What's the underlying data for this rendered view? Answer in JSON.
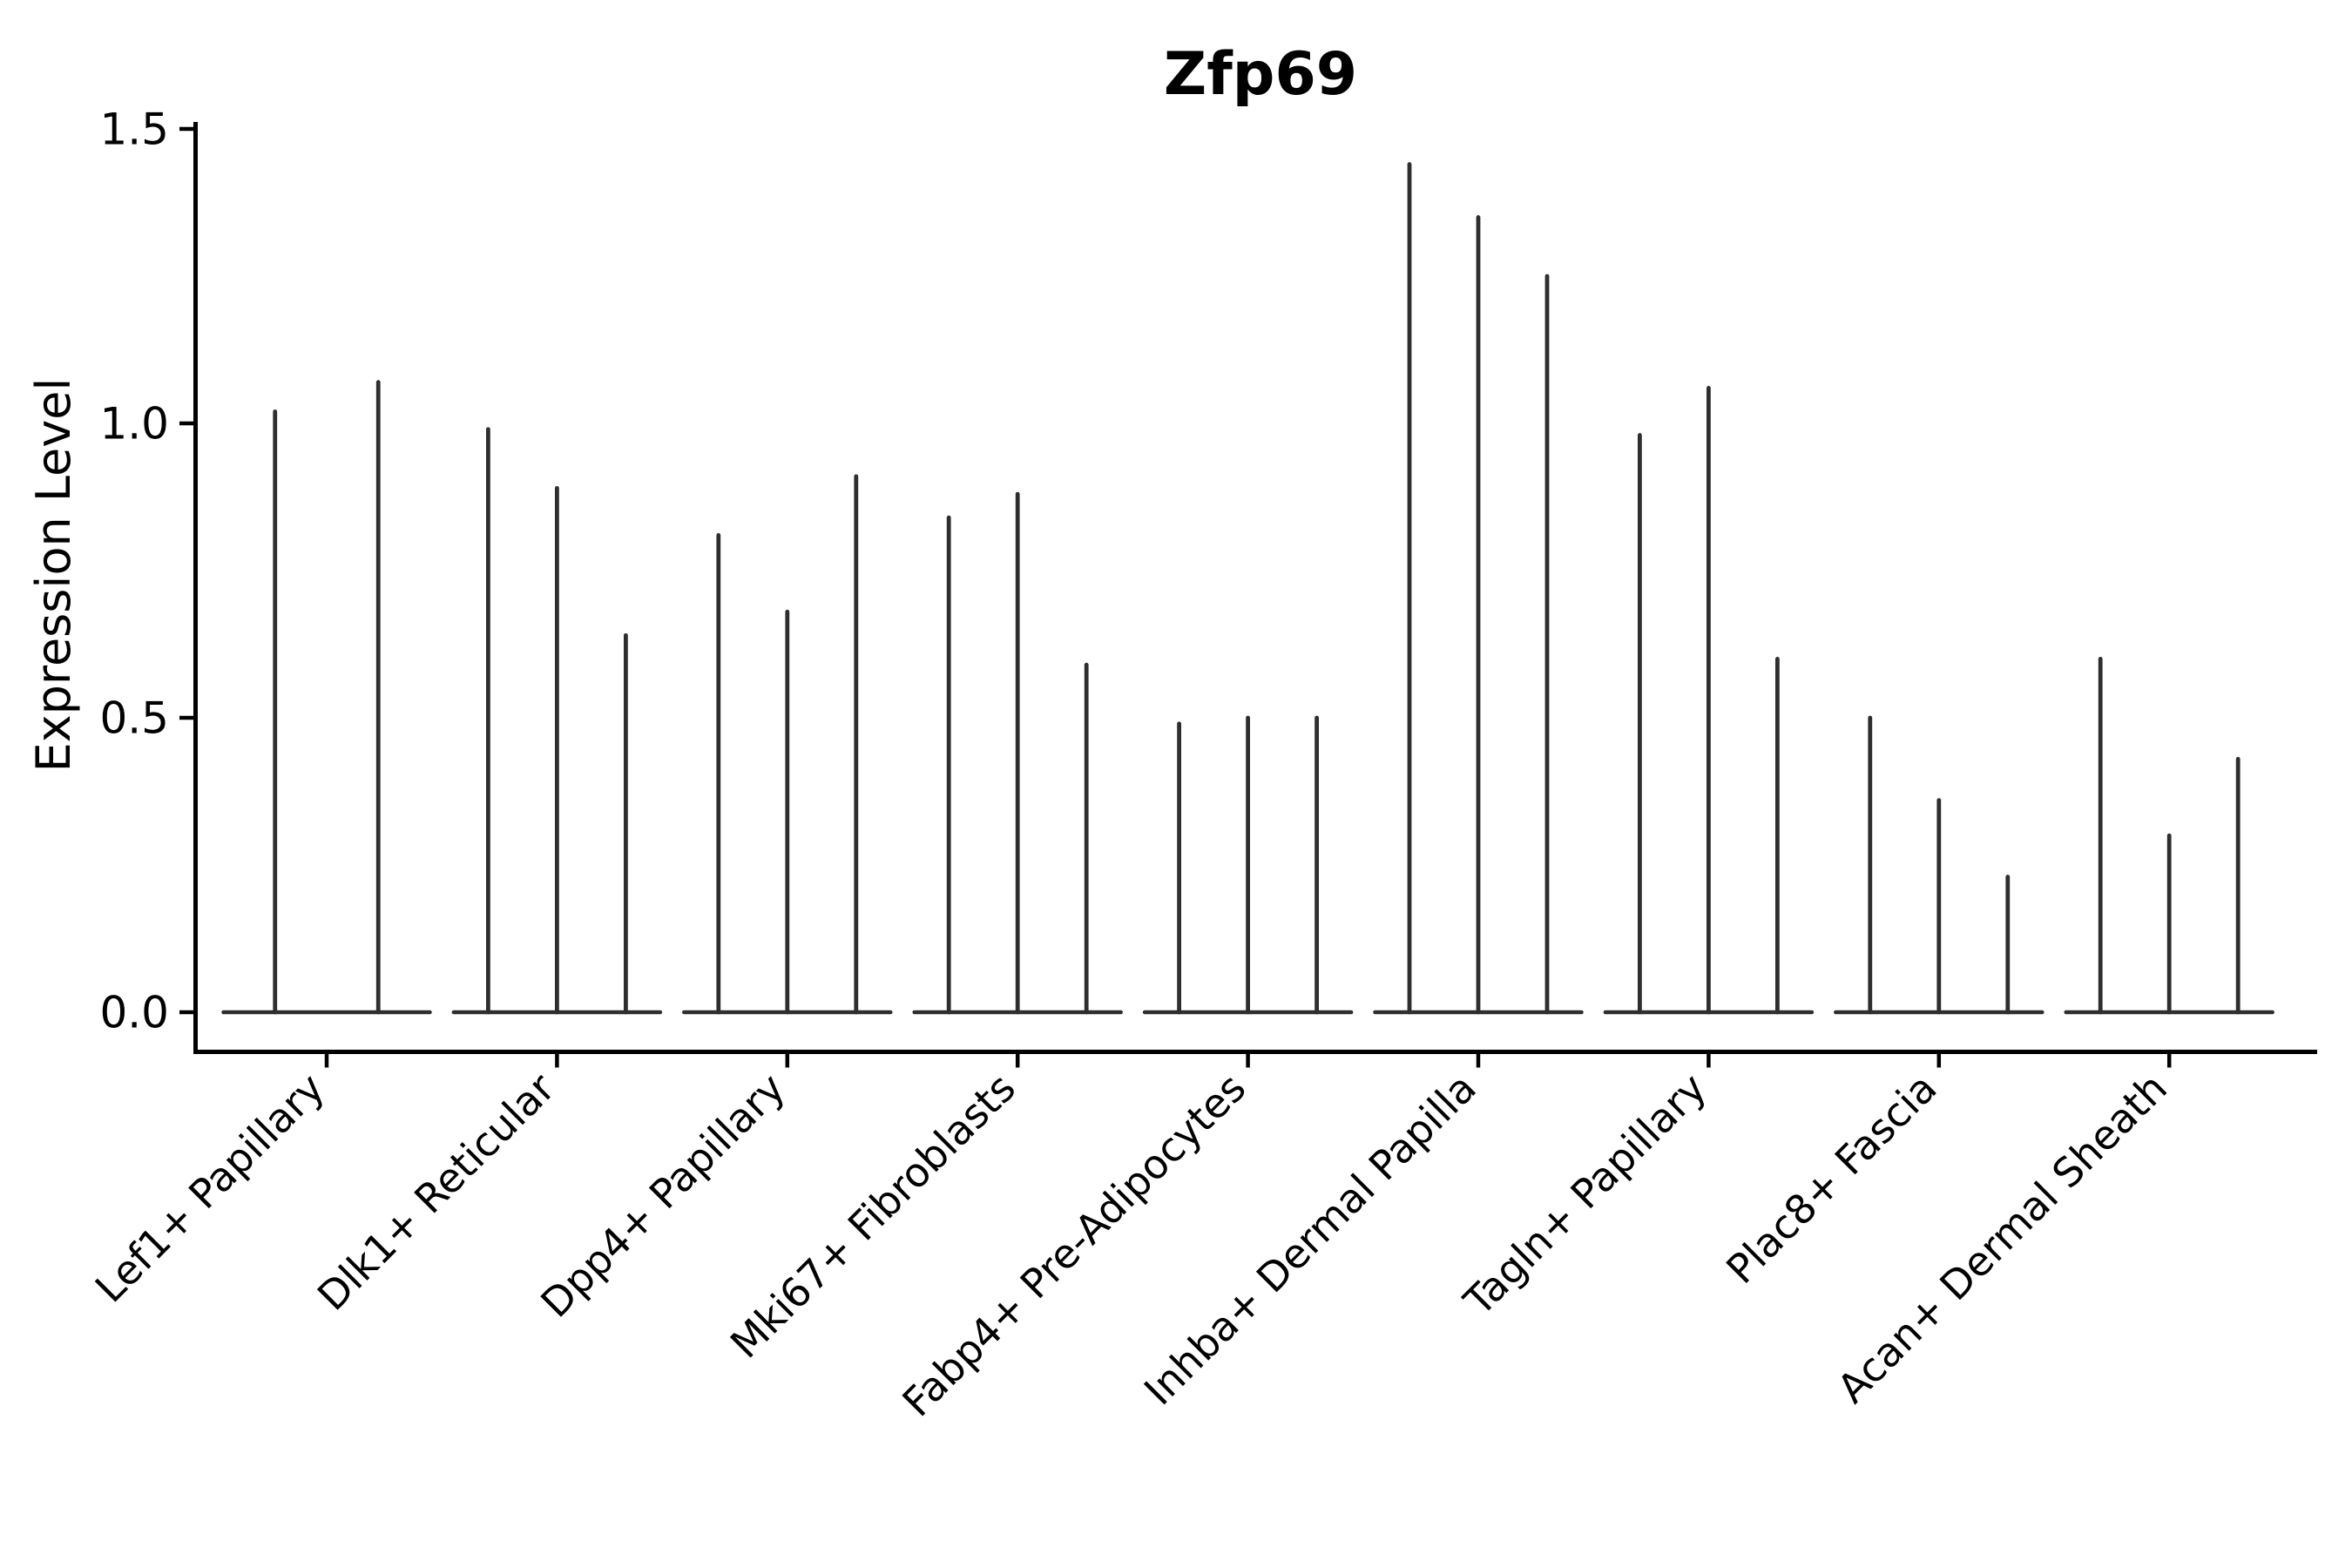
{
  "chart_data": {
    "type": "violin",
    "title": "Zfp69",
    "ylabel": "Expression Level",
    "xlabel": "",
    "yticks": [
      "0.0",
      "0.5",
      "1.0",
      "1.5"
    ],
    "ylim": [
      -0.07,
      1.58
    ],
    "grid": false,
    "legend": false,
    "categories": [
      "Lef1+ Papillary",
      "Dlk1+ Reticular",
      "Dpp4+ Papillary",
      "Mki67+ Fibroblasts",
      "Fabp4+ Pre-Adipocytes",
      "Inhba+ Dermal Papilla",
      "Tagln+ Papillary",
      "Plac8+ Fascia",
      "Acan+ Dermal Sheath"
    ],
    "groups": [
      {
        "category": "Lef1+ Papillary",
        "violin_peaks": [
          1.02,
          1.07
        ]
      },
      {
        "category": "Dlk1+ Reticular",
        "violin_peaks": [
          0.99,
          0.89,
          0.64
        ]
      },
      {
        "category": "Dpp4+ Papillary",
        "violin_peaks": [
          0.81,
          0.68,
          0.91
        ]
      },
      {
        "category": "Mki67+ Fibroblasts",
        "violin_peaks": [
          0.84,
          0.88,
          0.59
        ]
      },
      {
        "category": "Fabp4+ Pre-Adipocytes",
        "violin_peaks": [
          0.49,
          0.5,
          0.5
        ]
      },
      {
        "category": "Inhba+ Dermal Papilla",
        "violin_peaks": [
          1.44,
          1.35,
          1.25
        ]
      },
      {
        "category": "Tagln+ Papillary",
        "violin_peaks": [
          0.98,
          1.06,
          0.6
        ]
      },
      {
        "category": "Plac8+ Fascia",
        "violin_peaks": [
          0.5,
          0.36,
          0.23
        ]
      },
      {
        "category": "Acan+ Dermal Sheath",
        "violin_peaks": [
          0.6,
          0.3,
          0.43
        ]
      }
    ],
    "colors": {
      "background": "#ffffff",
      "violin": "#2e2e2e",
      "axis": "#000000"
    }
  }
}
